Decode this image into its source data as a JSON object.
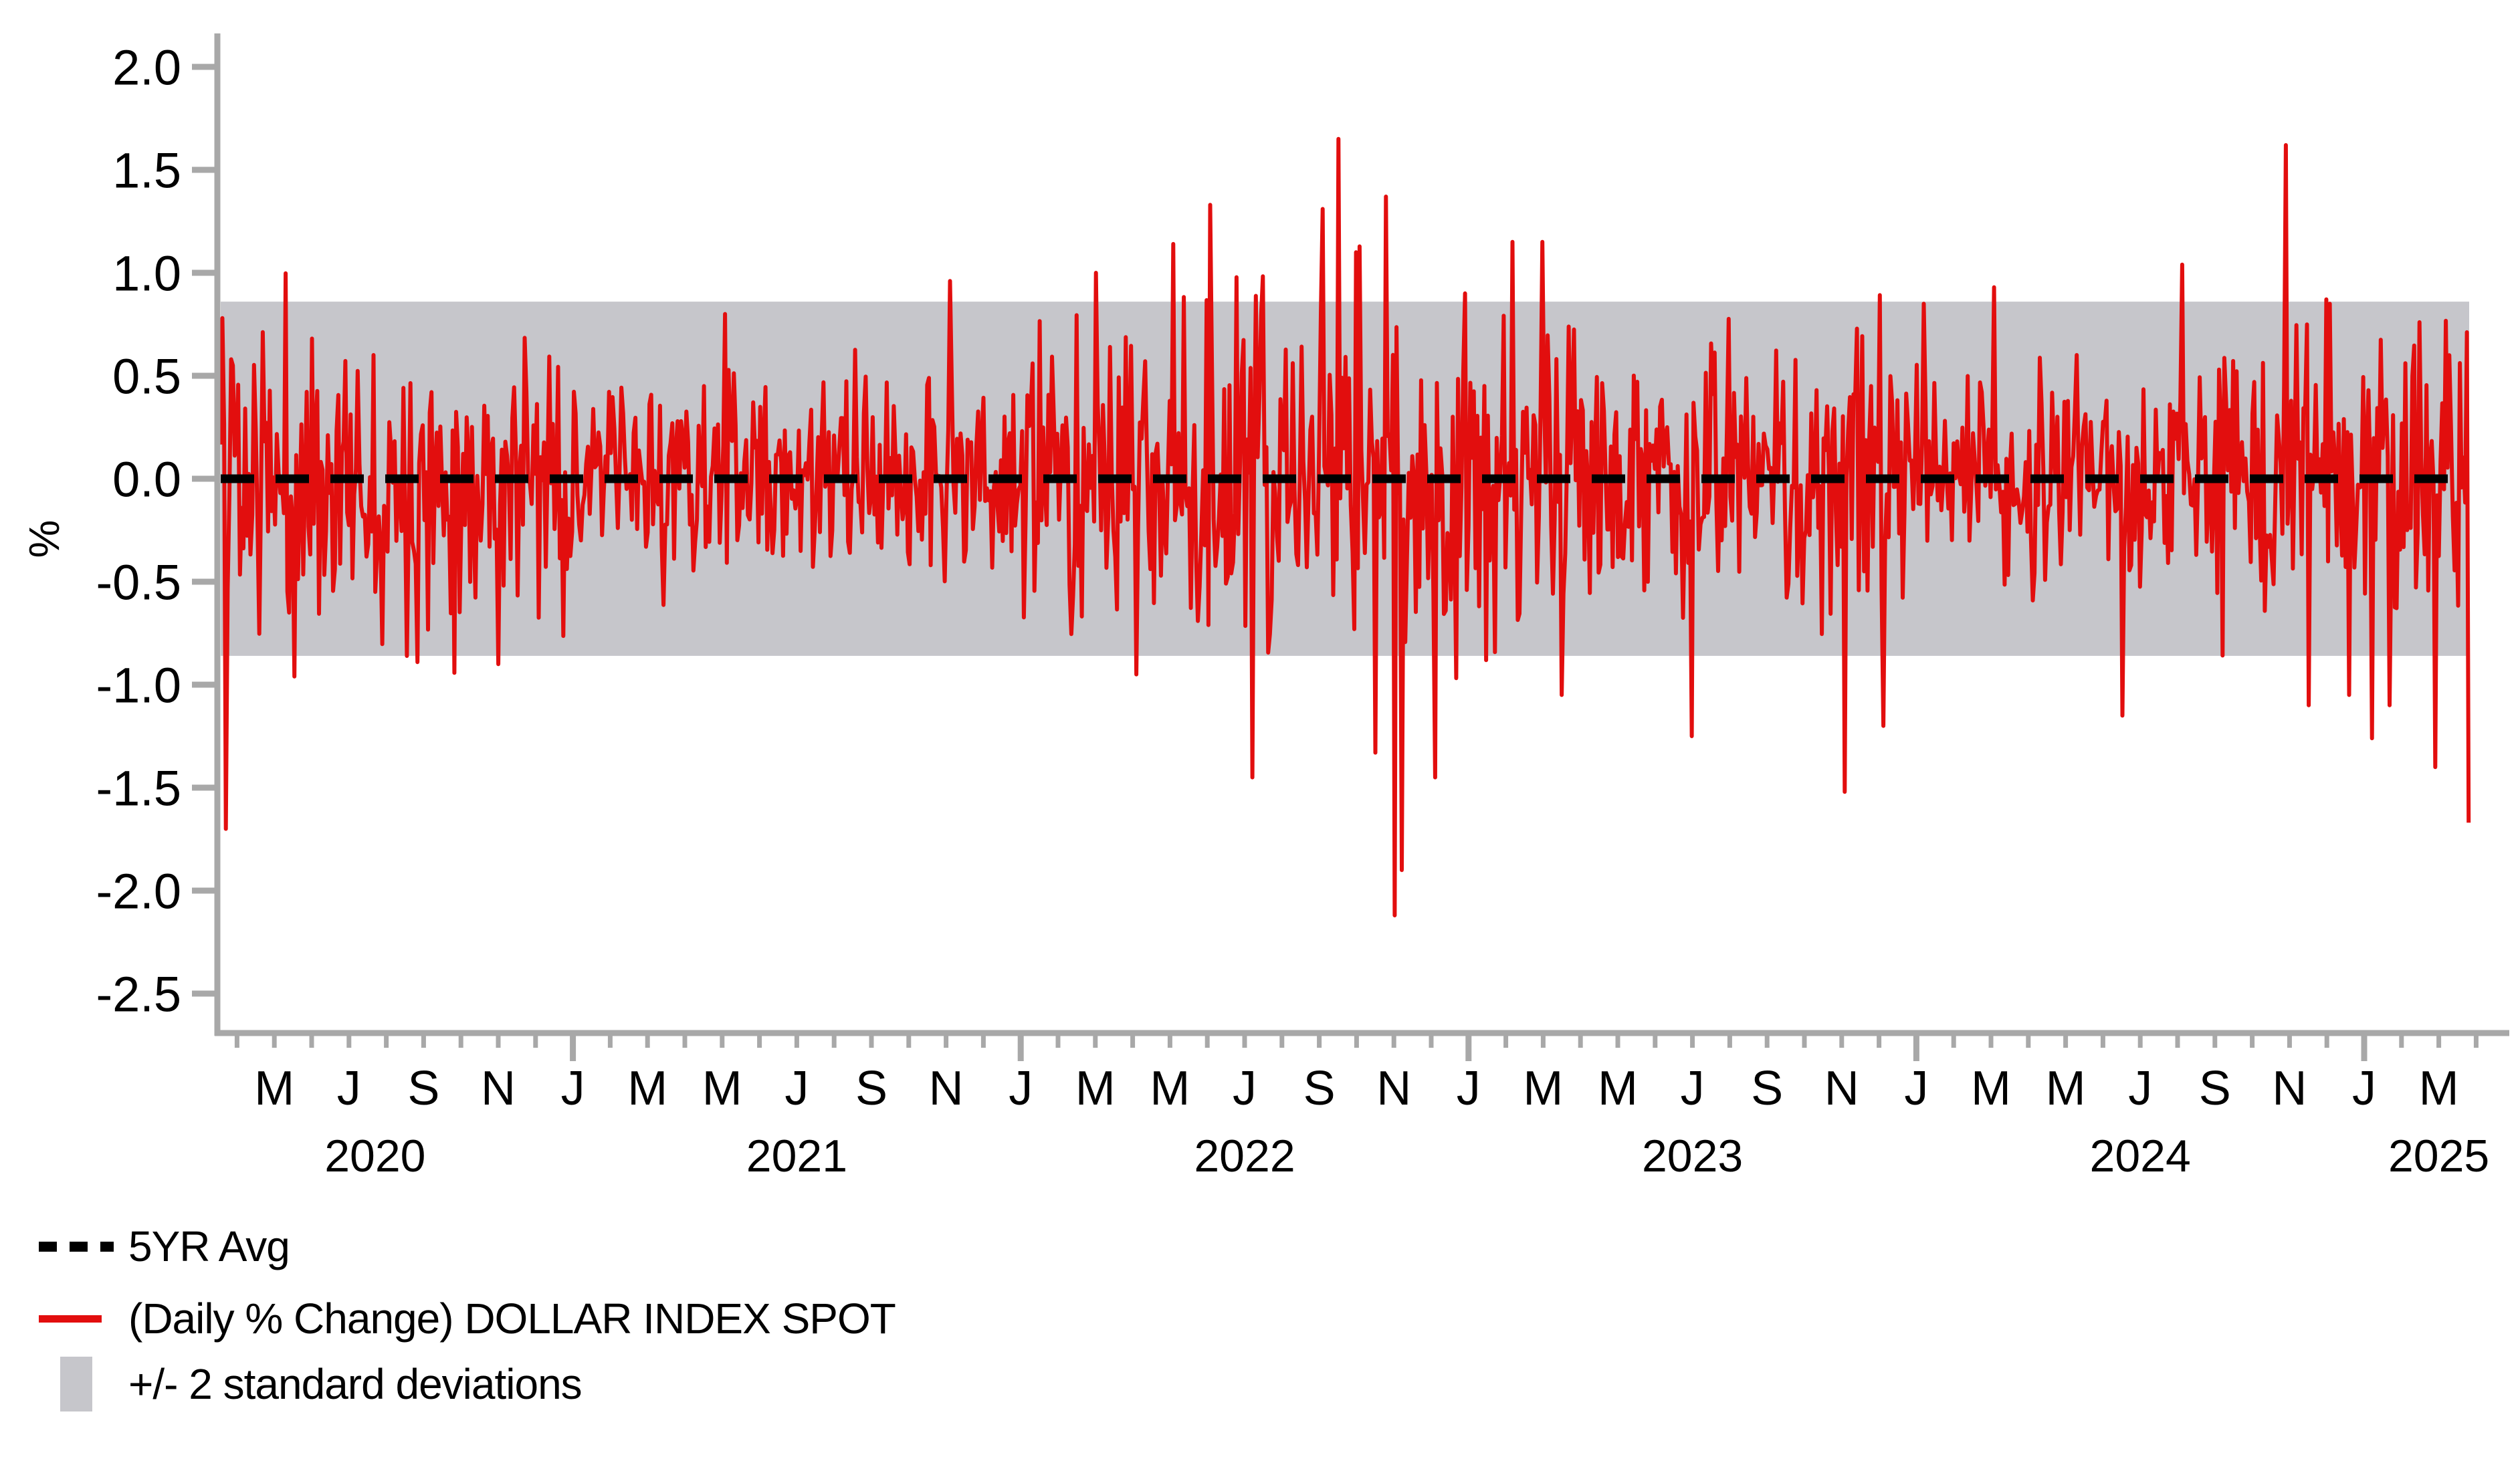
{
  "figure": {
    "background": "#ffffff"
  },
  "axis_style": {
    "line_color": "#a8a8a8",
    "tick_color": "#a8a8a8",
    "label_color": "#000000"
  },
  "chart_data": {
    "type": "line",
    "title": "",
    "xlabel": "",
    "ylabel": "%",
    "grid": false,
    "legend_position": "bottom-left",
    "y_tick_labels": [
      "2.0",
      "1.5",
      "1.0",
      "0.5",
      "0.0",
      "-0.5",
      "-1.0",
      "-1.5",
      "-2.0",
      "-2.5"
    ],
    "y_tick_values": [
      2.0,
      1.5,
      1.0,
      0.5,
      0.0,
      -0.5,
      -1.0,
      -1.5,
      -2.0,
      -2.5
    ],
    "ylim": [
      -2.69,
      2.16
    ],
    "x_axis": {
      "note": "m = months since Jan 2020; minor tick every month, long tick at each January",
      "months_domain": [
        3,
        63
      ],
      "january_ticks": [
        12,
        24,
        36,
        48,
        60
      ],
      "month_labels": [
        {
          "m": 4,
          "label": "M"
        },
        {
          "m": 6,
          "label": "J"
        },
        {
          "m": 8,
          "label": "S"
        },
        {
          "m": 10,
          "label": "N"
        },
        {
          "m": 12,
          "label": "J"
        },
        {
          "m": 14,
          "label": "M"
        },
        {
          "m": 16,
          "label": "M"
        },
        {
          "m": 18,
          "label": "J"
        },
        {
          "m": 20,
          "label": "S"
        },
        {
          "m": 22,
          "label": "N"
        },
        {
          "m": 24,
          "label": "J"
        },
        {
          "m": 26,
          "label": "M"
        },
        {
          "m": 28,
          "label": "M"
        },
        {
          "m": 30,
          "label": "J"
        },
        {
          "m": 32,
          "label": "S"
        },
        {
          "m": 34,
          "label": "N"
        },
        {
          "m": 36,
          "label": "J"
        },
        {
          "m": 38,
          "label": "M"
        },
        {
          "m": 40,
          "label": "M"
        },
        {
          "m": 42,
          "label": "J"
        },
        {
          "m": 44,
          "label": "S"
        },
        {
          "m": 46,
          "label": "N"
        },
        {
          "m": 48,
          "label": "J"
        },
        {
          "m": 50,
          "label": "M"
        },
        {
          "m": 52,
          "label": "M"
        },
        {
          "m": 54,
          "label": "J"
        },
        {
          "m": 56,
          "label": "S"
        },
        {
          "m": 58,
          "label": "N"
        },
        {
          "m": 60,
          "label": "J"
        },
        {
          "m": 62,
          "label": "M"
        }
      ],
      "year_labels": [
        {
          "m": 6.7,
          "label": "2020"
        },
        {
          "m": 18,
          "label": "2021"
        },
        {
          "m": 30,
          "label": "2022"
        },
        {
          "m": 42,
          "label": "2023"
        },
        {
          "m": 54,
          "label": "2024"
        },
        {
          "m": 62,
          "label": "2025"
        }
      ]
    },
    "band": {
      "label": "+/- 2 standard deviations",
      "high": 0.86,
      "low": -0.86,
      "color": "#c6c6cb"
    },
    "avg_line": {
      "label": "5YR Avg",
      "value": 0.0,
      "color": "#000000",
      "dash": [
        50,
        32
      ],
      "width": 13
    },
    "series": {
      "name": "(Daily % Change) DOLLAR INDEX SPOT",
      "color": "#e20e0e",
      "stroke_width": 6,
      "n_points": 1280,
      "start_month": 2.56,
      "end_month": 62.8,
      "seed": 11,
      "volatility_epochs": [
        {
          "until_month": 4.5,
          "sigma": 0.4
        },
        {
          "until_month": 12,
          "sigma": 0.32
        },
        {
          "until_month": 24,
          "sigma": 0.24
        },
        {
          "until_month": 28,
          "sigma": 0.34
        },
        {
          "until_month": 37,
          "sigma": 0.46
        },
        {
          "until_month": 42,
          "sigma": 0.33
        },
        {
          "until_month": 48,
          "sigma": 0.3
        },
        {
          "until_month": 56,
          "sigma": 0.25
        },
        {
          "until_month": 60,
          "sigma": 0.32
        },
        {
          "until_month": 63,
          "sigma": 0.36
        }
      ],
      "key_points": [
        {
          "m": 2.63,
          "v": 0.78
        },
        {
          "m": 2.71,
          "v": -1.7
        },
        {
          "m": 2.89,
          "v": 0.55
        },
        {
          "m": 4.53,
          "v": -0.96
        },
        {
          "m": 10.0,
          "v": -0.9
        },
        {
          "m": 16.1,
          "v": 0.8
        },
        {
          "m": 22.1,
          "v": 0.96
        },
        {
          "m": 26.0,
          "v": 1.0
        },
        {
          "m": 27.1,
          "v": -0.95
        },
        {
          "m": 28.1,
          "v": 1.14
        },
        {
          "m": 29.1,
          "v": 1.33
        },
        {
          "m": 30.2,
          "v": -1.45
        },
        {
          "m": 32.1,
          "v": 1.31
        },
        {
          "m": 32.5,
          "v": 1.65
        },
        {
          "m": 33.0,
          "v": 1.1
        },
        {
          "m": 33.5,
          "v": -1.33
        },
        {
          "m": 33.8,
          "v": 1.37
        },
        {
          "m": 34.0,
          "v": -2.12
        },
        {
          "m": 34.2,
          "v": -1.9
        },
        {
          "m": 35.1,
          "v": -1.45
        },
        {
          "m": 35.9,
          "v": 0.9
        },
        {
          "m": 37.2,
          "v": 1.15
        },
        {
          "m": 38.0,
          "v": 1.15
        },
        {
          "m": 38.5,
          "v": -1.05
        },
        {
          "m": 42.0,
          "v": -1.25
        },
        {
          "m": 46.1,
          "v": -1.52
        },
        {
          "m": 47.1,
          "v": -1.2
        },
        {
          "m": 48.2,
          "v": 0.85
        },
        {
          "m": 50.1,
          "v": 0.93
        },
        {
          "m": 53.5,
          "v": -1.15
        },
        {
          "m": 55.1,
          "v": 1.04
        },
        {
          "m": 57.9,
          "v": 1.62
        },
        {
          "m": 58.5,
          "v": -1.1
        },
        {
          "m": 59.1,
          "v": 0.85
        },
        {
          "m": 59.6,
          "v": -1.05
        },
        {
          "m": 60.2,
          "v": -1.26
        },
        {
          "m": 60.7,
          "v": -1.1
        },
        {
          "m": 61.5,
          "v": 0.76
        },
        {
          "m": 61.9,
          "v": -1.4
        },
        {
          "m": 62.3,
          "v": 0.6
        },
        {
          "m": 62.8,
          "v": -1.67
        }
      ]
    }
  },
  "legend": {
    "items": [
      {
        "label": "5YR Avg",
        "swatch": "dashed-line",
        "color": "#000000"
      },
      {
        "label": "(Daily % Change) DOLLAR INDEX SPOT",
        "swatch": "line",
        "color": "#e20e0e"
      },
      {
        "label": "+/- 2 standard deviations",
        "swatch": "rect",
        "color": "#c6c6cb"
      }
    ]
  }
}
